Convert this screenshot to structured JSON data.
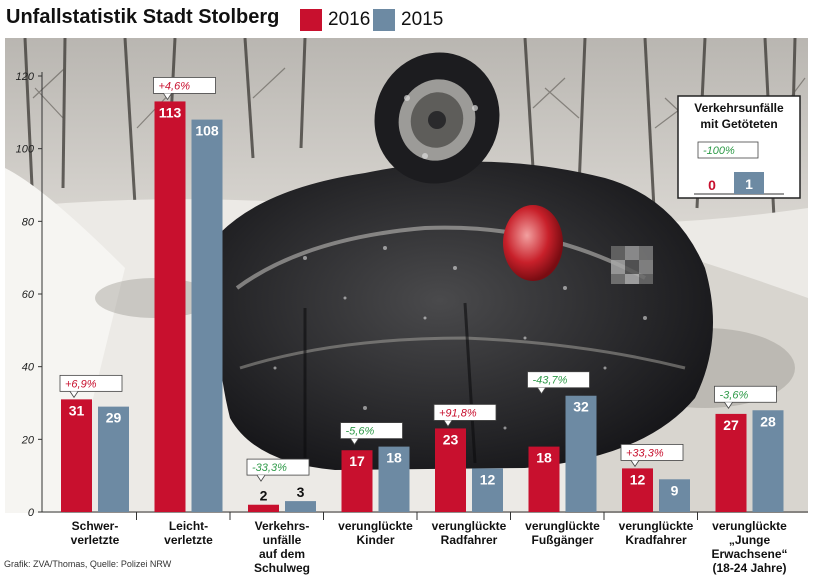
{
  "title": "Unfallstatistik Stadt Stolberg",
  "legend": [
    {
      "label": "2016",
      "color": "#c8102e"
    },
    {
      "label": "2015",
      "color": "#6d8aa3"
    }
  ],
  "credit": "Grafik: ZVA/Thomas, Quelle: Polizei NRW",
  "chart_data": {
    "type": "bar",
    "title": "Unfallstatistik Stadt Stolberg",
    "categories": [
      "Schwer-verletzte",
      "Leicht-verletzte",
      "Verkehrs-unfälle auf dem Schulweg",
      "verunglückte Kinder",
      "verunglückte Radfahrer",
      "verunglückte Fußgänger",
      "verunglückte Kradfahrer",
      "verunglückte „Junge Erwachsene“ (18-24 Jahre)"
    ],
    "category_lines": [
      [
        "Schwer-",
        "verletzte"
      ],
      [
        "Leicht-",
        "verletzte"
      ],
      [
        "Verkehrs-",
        "unfälle",
        "auf dem",
        "Schulweg"
      ],
      [
        "verunglückte",
        "Kinder"
      ],
      [
        "verunglückte",
        "Radfahrer"
      ],
      [
        "verunglückte",
        "Fußgänger"
      ],
      [
        "verunglückte",
        "Kradfahrer"
      ],
      [
        "verunglückte",
        "„Junge",
        "Erwachsene“",
        "(18-24 Jahre)"
      ]
    ],
    "series": [
      {
        "name": "2016",
        "color": "#c8102e",
        "values": [
          31,
          113,
          2,
          17,
          23,
          18,
          12,
          27
        ]
      },
      {
        "name": "2015",
        "color": "#6d8aa3",
        "values": [
          29,
          108,
          3,
          18,
          12,
          32,
          9,
          28
        ]
      }
    ],
    "changes": [
      "+6,9%",
      "+4,6%",
      "-33,3%",
      "-5,6%",
      "+91,8%",
      "-43,7%",
      "+33,3%",
      "-3,6%"
    ],
    "change_colors": [
      "#c8102e",
      "#c8102e",
      "#2e9a48",
      "#2e9a48",
      "#c8102e",
      "#2e9a48",
      "#c8102e",
      "#2e9a48"
    ],
    "ylim": [
      0,
      120
    ],
    "yticks": [
      0,
      20,
      40,
      60,
      80,
      100,
      120
    ],
    "inset": {
      "title_lines": [
        "Verkehrsunfälle",
        "mit Getöteten"
      ],
      "values": [
        0,
        1
      ],
      "change": "-100%",
      "change_color": "#2e9a48"
    }
  }
}
